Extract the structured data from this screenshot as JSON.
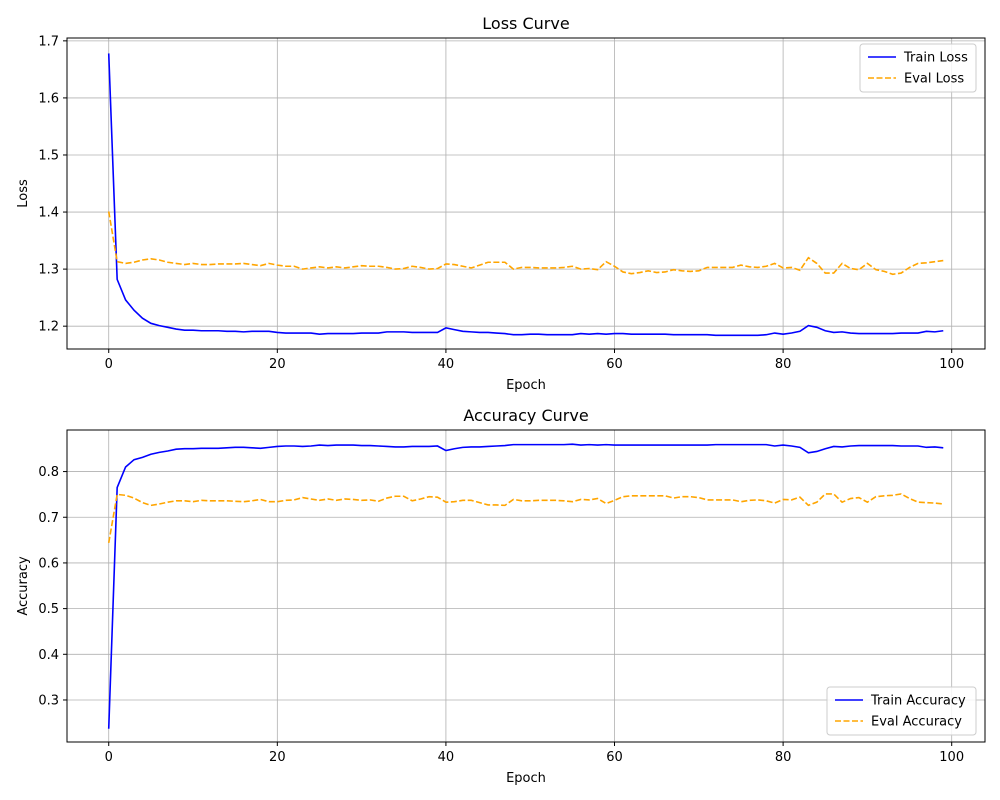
{
  "chart_data": [
    {
      "type": "line",
      "title": "Loss Curve",
      "xlabel": "Epoch",
      "ylabel": "Loss",
      "xlim": [
        -4.95,
        103.95
      ],
      "ylim": [
        1.16,
        1.705
      ],
      "xticks": [
        0,
        20,
        40,
        60,
        80,
        100
      ],
      "yticks": [
        1.2,
        1.3,
        1.4,
        1.5,
        1.6,
        1.7
      ],
      "ytick_format": "1",
      "grid": true,
      "legend_position": "top-right",
      "x": [
        0,
        1,
        2,
        3,
        4,
        5,
        6,
        7,
        8,
        9,
        10,
        11,
        12,
        13,
        14,
        15,
        16,
        17,
        18,
        19,
        20,
        21,
        22,
        23,
        24,
        25,
        26,
        27,
        28,
        29,
        30,
        31,
        32,
        33,
        34,
        35,
        36,
        37,
        38,
        39,
        40,
        41,
        42,
        43,
        44,
        45,
        46,
        47,
        48,
        49,
        50,
        51,
        52,
        53,
        54,
        55,
        56,
        57,
        58,
        59,
        60,
        61,
        62,
        63,
        64,
        65,
        66,
        67,
        68,
        69,
        70,
        71,
        72,
        73,
        74,
        75,
        76,
        77,
        78,
        79,
        80,
        81,
        82,
        83,
        84,
        85,
        86,
        87,
        88,
        89,
        90,
        91,
        92,
        93,
        94,
        95,
        96,
        97,
        98,
        99
      ],
      "series": [
        {
          "name": "Train Loss",
          "color": "#0000ff",
          "dash": "solid",
          "values": [
            1.678,
            1.282,
            1.246,
            1.228,
            1.214,
            1.205,
            1.201,
            1.198,
            1.195,
            1.193,
            1.193,
            1.192,
            1.192,
            1.192,
            1.191,
            1.191,
            1.19,
            1.191,
            1.191,
            1.191,
            1.189,
            1.188,
            1.188,
            1.188,
            1.188,
            1.186,
            1.187,
            1.187,
            1.187,
            1.187,
            1.188,
            1.188,
            1.188,
            1.19,
            1.19,
            1.19,
            1.189,
            1.189,
            1.189,
            1.189,
            1.197,
            1.194,
            1.191,
            1.19,
            1.189,
            1.189,
            1.188,
            1.187,
            1.185,
            1.185,
            1.186,
            1.186,
            1.185,
            1.185,
            1.185,
            1.185,
            1.187,
            1.186,
            1.187,
            1.186,
            1.187,
            1.187,
            1.186,
            1.186,
            1.186,
            1.186,
            1.186,
            1.185,
            1.185,
            1.185,
            1.185,
            1.185,
            1.184,
            1.184,
            1.184,
            1.184,
            1.184,
            1.184,
            1.185,
            1.188,
            1.186,
            1.188,
            1.191,
            1.201,
            1.198,
            1.192,
            1.189,
            1.19,
            1.188,
            1.187,
            1.187,
            1.187,
            1.187,
            1.187,
            1.188,
            1.188,
            1.188,
            1.191,
            1.19,
            1.192
          ]
        },
        {
          "name": "Eval Loss",
          "color": "#ffa500",
          "dash": "dashed",
          "values": [
            1.401,
            1.313,
            1.31,
            1.312,
            1.316,
            1.318,
            1.316,
            1.312,
            1.31,
            1.308,
            1.31,
            1.308,
            1.308,
            1.309,
            1.309,
            1.309,
            1.31,
            1.308,
            1.306,
            1.31,
            1.307,
            1.305,
            1.305,
            1.3,
            1.302,
            1.304,
            1.302,
            1.304,
            1.302,
            1.304,
            1.306,
            1.305,
            1.305,
            1.303,
            1.3,
            1.301,
            1.305,
            1.303,
            1.3,
            1.301,
            1.309,
            1.308,
            1.305,
            1.302,
            1.307,
            1.312,
            1.312,
            1.312,
            1.3,
            1.303,
            1.303,
            1.302,
            1.302,
            1.302,
            1.303,
            1.305,
            1.3,
            1.301,
            1.299,
            1.313,
            1.305,
            1.295,
            1.292,
            1.294,
            1.297,
            1.294,
            1.295,
            1.299,
            1.297,
            1.296,
            1.297,
            1.303,
            1.303,
            1.303,
            1.303,
            1.307,
            1.304,
            1.303,
            1.305,
            1.31,
            1.302,
            1.303,
            1.298,
            1.32,
            1.31,
            1.293,
            1.293,
            1.31,
            1.301,
            1.299,
            1.31,
            1.299,
            1.296,
            1.291,
            1.293,
            1.303,
            1.31,
            1.311,
            1.313,
            1.315
          ]
        }
      ]
    },
    {
      "type": "line",
      "title": "Accuracy Curve",
      "xlabel": "Epoch",
      "ylabel": "Accuracy",
      "xlim": [
        -4.95,
        103.95
      ],
      "ylim": [
        0.208,
        0.891
      ],
      "xticks": [
        0,
        20,
        40,
        60,
        80,
        100
      ],
      "yticks": [
        0.3,
        0.4,
        0.5,
        0.6,
        0.7,
        0.8
      ],
      "ytick_format": "1",
      "grid": true,
      "legend_position": "bottom-right",
      "x": [
        0,
        1,
        2,
        3,
        4,
        5,
        6,
        7,
        8,
        9,
        10,
        11,
        12,
        13,
        14,
        15,
        16,
        17,
        18,
        19,
        20,
        21,
        22,
        23,
        24,
        25,
        26,
        27,
        28,
        29,
        30,
        31,
        32,
        33,
        34,
        35,
        36,
        37,
        38,
        39,
        40,
        41,
        42,
        43,
        44,
        45,
        46,
        47,
        48,
        49,
        50,
        51,
        52,
        53,
        54,
        55,
        56,
        57,
        58,
        59,
        60,
        61,
        62,
        63,
        64,
        65,
        66,
        67,
        68,
        69,
        70,
        71,
        72,
        73,
        74,
        75,
        76,
        77,
        78,
        79,
        80,
        81,
        82,
        83,
        84,
        85,
        86,
        87,
        88,
        89,
        90,
        91,
        92,
        93,
        94,
        95,
        96,
        97,
        98,
        99
      ],
      "series": [
        {
          "name": "Train Accuracy",
          "color": "#0000ff",
          "dash": "solid",
          "values": [
            0.237,
            0.765,
            0.81,
            0.826,
            0.831,
            0.838,
            0.842,
            0.845,
            0.849,
            0.85,
            0.85,
            0.851,
            0.851,
            0.851,
            0.852,
            0.853,
            0.853,
            0.852,
            0.851,
            0.853,
            0.855,
            0.856,
            0.856,
            0.855,
            0.856,
            0.858,
            0.857,
            0.858,
            0.858,
            0.858,
            0.857,
            0.857,
            0.856,
            0.855,
            0.854,
            0.854,
            0.855,
            0.855,
            0.855,
            0.856,
            0.846,
            0.85,
            0.853,
            0.854,
            0.854,
            0.855,
            0.856,
            0.857,
            0.859,
            0.859,
            0.859,
            0.859,
            0.859,
            0.859,
            0.859,
            0.86,
            0.858,
            0.859,
            0.858,
            0.859,
            0.858,
            0.858,
            0.858,
            0.858,
            0.858,
            0.858,
            0.858,
            0.858,
            0.858,
            0.858,
            0.858,
            0.858,
            0.859,
            0.859,
            0.859,
            0.859,
            0.859,
            0.859,
            0.859,
            0.856,
            0.858,
            0.856,
            0.853,
            0.841,
            0.844,
            0.85,
            0.855,
            0.854,
            0.856,
            0.857,
            0.857,
            0.857,
            0.857,
            0.857,
            0.856,
            0.856,
            0.856,
            0.853,
            0.854,
            0.852
          ]
        },
        {
          "name": "Eval Accuracy",
          "color": "#ffa500",
          "dash": "dashed",
          "values": [
            0.644,
            0.75,
            0.748,
            0.742,
            0.732,
            0.726,
            0.729,
            0.733,
            0.736,
            0.736,
            0.734,
            0.737,
            0.736,
            0.736,
            0.736,
            0.735,
            0.734,
            0.736,
            0.739,
            0.734,
            0.734,
            0.737,
            0.738,
            0.743,
            0.74,
            0.737,
            0.74,
            0.737,
            0.74,
            0.739,
            0.737,
            0.738,
            0.735,
            0.742,
            0.746,
            0.746,
            0.736,
            0.74,
            0.745,
            0.744,
            0.733,
            0.734,
            0.737,
            0.737,
            0.732,
            0.727,
            0.727,
            0.726,
            0.739,
            0.736,
            0.736,
            0.737,
            0.737,
            0.737,
            0.736,
            0.734,
            0.739,
            0.738,
            0.741,
            0.73,
            0.737,
            0.745,
            0.747,
            0.747,
            0.747,
            0.747,
            0.747,
            0.742,
            0.745,
            0.745,
            0.743,
            0.738,
            0.738,
            0.738,
            0.738,
            0.734,
            0.737,
            0.738,
            0.736,
            0.731,
            0.739,
            0.738,
            0.744,
            0.726,
            0.733,
            0.751,
            0.751,
            0.733,
            0.741,
            0.743,
            0.733,
            0.745,
            0.747,
            0.748,
            0.751,
            0.741,
            0.733,
            0.732,
            0.731,
            0.729
          ]
        }
      ]
    }
  ]
}
